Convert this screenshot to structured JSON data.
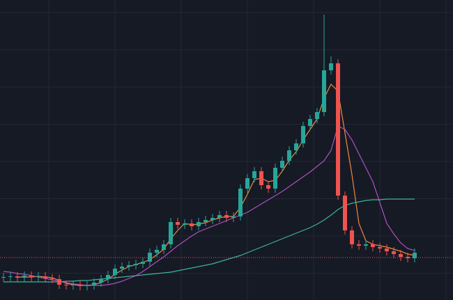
{
  "chart_data": {
    "type": "candlestick",
    "ylim": [
      0,
      431
    ],
    "open": [
      32,
      33,
      34,
      32,
      35,
      33,
      34,
      31,
      30,
      22,
      21,
      22,
      20,
      21,
      25,
      30,
      36,
      45,
      48,
      50,
      52,
      55,
      68,
      72,
      80,
      112,
      108,
      110,
      106,
      112,
      115,
      118,
      122,
      118,
      120,
      160,
      175,
      185,
      165,
      160,
      190,
      200,
      215,
      225,
      250,
      260,
      270,
      330,
      340,
      150,
      100,
      80,
      78,
      80,
      76,
      74,
      70,
      66,
      62,
      60
    ],
    "high": [
      39,
      40,
      40,
      41,
      41,
      40,
      40,
      37,
      36,
      28,
      28,
      28,
      27,
      31,
      36,
      42,
      51,
      54,
      56,
      58,
      61,
      74,
      78,
      86,
      118,
      118,
      116,
      116,
      118,
      121,
      124,
      128,
      128,
      126,
      166,
      181,
      191,
      191,
      171,
      196,
      206,
      221,
      231,
      256,
      266,
      276,
      410,
      350,
      346,
      156,
      106,
      86,
      86,
      86,
      82,
      80,
      76,
      72,
      68,
      74
    ],
    "low": [
      26,
      27,
      26,
      26,
      27,
      27,
      25,
      24,
      16,
      15,
      15,
      14,
      14,
      15,
      19,
      24,
      30,
      39,
      42,
      44,
      46,
      49,
      62,
      66,
      74,
      102,
      102,
      100,
      100,
      106,
      109,
      112,
      112,
      112,
      114,
      154,
      169,
      159,
      154,
      154,
      184,
      194,
      209,
      219,
      244,
      254,
      264,
      324,
      144,
      94,
      74,
      72,
      72,
      70,
      68,
      64,
      60,
      56,
      54,
      54
    ],
    "close": [
      33,
      34,
      32,
      35,
      33,
      34,
      31,
      30,
      22,
      21,
      22,
      20,
      21,
      25,
      30,
      36,
      45,
      48,
      50,
      52,
      55,
      68,
      72,
      80,
      112,
      108,
      110,
      106,
      112,
      115,
      118,
      122,
      118,
      120,
      160,
      175,
      185,
      165,
      160,
      190,
      200,
      215,
      225,
      250,
      260,
      270,
      330,
      340,
      150,
      100,
      80,
      78,
      80,
      76,
      74,
      70,
      66,
      62,
      60,
      68
    ],
    "up_color": "#26a69a",
    "down_color": "#ef5350",
    "series": [
      {
        "color": "#f0883e",
        "values": [
          null,
          null,
          33,
          33,
          33,
          34,
          33,
          32,
          28,
          24,
          22,
          21,
          21,
          22,
          25,
          30,
          37,
          43,
          48,
          51,
          54,
          58,
          65,
          73,
          88,
          100,
          110,
          108,
          109,
          111,
          115,
          118,
          120,
          120,
          133,
          152,
          173,
          175,
          170,
          172,
          185,
          201,
          213,
          230,
          245,
          260,
          290,
          310,
          300,
          240,
          180,
          110,
          85,
          80,
          78,
          76,
          73,
          70,
          66,
          64
        ]
      },
      {
        "color": "#b04fc0",
        "values": [
          41,
          40,
          38,
          37,
          35,
          33,
          31,
          29,
          27,
          25,
          23,
          22,
          21,
          21,
          21,
          22,
          24,
          27,
          31,
          35,
          41,
          48,
          55,
          62,
          70,
          78,
          85,
          92,
          98,
          102,
          106,
          110,
          114,
          118,
          122,
          126,
          132,
          138,
          144,
          150,
          156,
          163,
          170,
          177,
          184,
          192,
          200,
          215,
          250,
          245,
          230,
          210,
          190,
          170,
          140,
          110,
          95,
          82,
          74,
          71
        ]
      },
      {
        "color": "#3cb39a",
        "values": [
          26,
          26,
          26,
          26,
          26,
          26,
          26,
          26,
          26,
          27,
          27,
          28,
          28,
          29,
          30,
          31,
          32,
          33,
          34,
          35,
          36,
          37,
          38,
          39,
          40,
          42,
          44,
          46,
          48,
          50,
          52,
          55,
          58,
          61,
          64,
          68,
          72,
          76,
          80,
          84,
          88,
          92,
          96,
          100,
          104,
          109,
          115,
          122,
          130,
          136,
          139,
          141,
          143,
          144,
          144,
          145,
          145,
          145,
          145,
          145
        ]
      }
    ],
    "price_line": 61,
    "price_line_color": "#ef5350",
    "grid": true
  }
}
